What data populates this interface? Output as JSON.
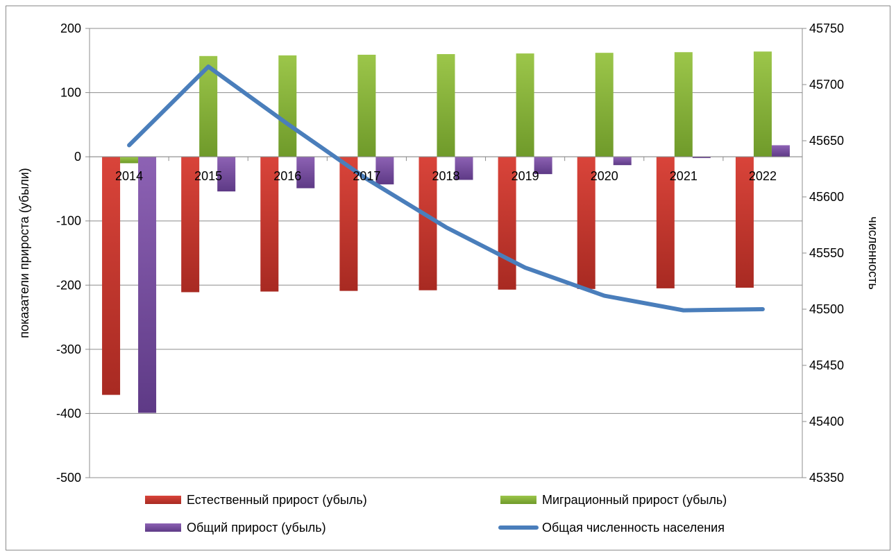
{
  "chart_data": {
    "type": "bar",
    "categories": [
      "2014",
      "2015",
      "2016",
      "2017",
      "2018",
      "2019",
      "2020",
      "2021",
      "2022"
    ],
    "series": [
      {
        "name": "Естественный прирост (убыль)",
        "type": "bar",
        "axis": "left",
        "color": "#c0392b",
        "values": [
          -371,
          -211,
          -210,
          -209,
          -208,
          -207,
          -206,
          -205,
          -204
        ]
      },
      {
        "name": "Миграционный прирост (убыль)",
        "type": "bar",
        "axis": "left",
        "color": "#8db33a",
        "values": [
          -10,
          157,
          158,
          159,
          160,
          161,
          162,
          163,
          164
        ]
      },
      {
        "name": "Общий прирост (убыль)",
        "type": "bar",
        "axis": "left",
        "color": "#7b4fa0",
        "values": [
          -399,
          -54,
          -49,
          -43,
          -36,
          -27,
          -13,
          -2,
          18
        ]
      },
      {
        "name": "Общая численность населения",
        "type": "line",
        "axis": "right",
        "color": "#4a7ebb",
        "values": [
          45646,
          45716,
          45665,
          45616,
          45573,
          45537,
          45512,
          45499,
          45500
        ]
      }
    ],
    "ylabel": "показатели прироста (убыли)",
    "y2label": "численность",
    "ylim": [
      -500,
      200
    ],
    "y2lim": [
      45350,
      45750
    ],
    "yticks": [
      "200",
      "100",
      "0",
      "-100",
      "-200",
      "-300",
      "-400",
      "-500"
    ],
    "y2ticks": [
      "45750",
      "45700",
      "45650",
      "45600",
      "45550",
      "45500",
      "45450",
      "45400",
      "45350"
    ],
    "grid": true,
    "legend": "bottom"
  }
}
